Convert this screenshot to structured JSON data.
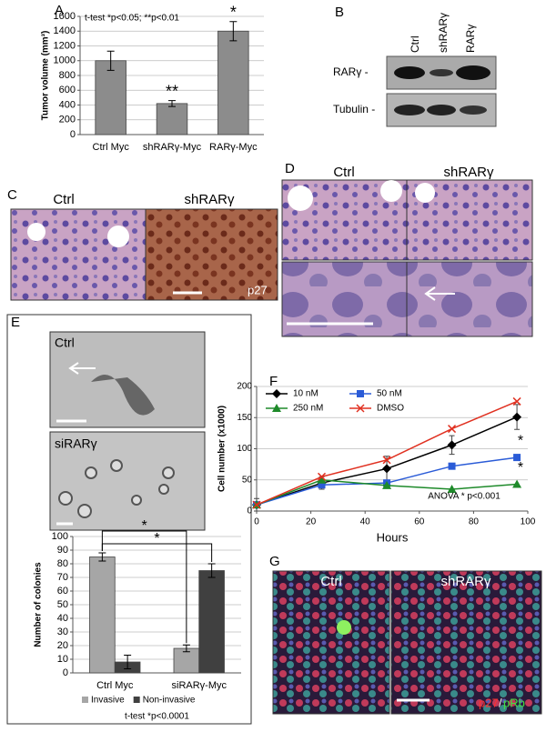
{
  "panel_labels": [
    "A",
    "B",
    "C",
    "D",
    "E",
    "F",
    "G"
  ],
  "blot": {
    "lanes": [
      "Ctrl",
      "shRARγ",
      "RARγ"
    ],
    "rows": [
      "RARγ -",
      "Tubulin -"
    ]
  },
  "panel_C": {
    "labels": [
      "Ctrl",
      "shRARγ"
    ],
    "stain": "p27"
  },
  "panel_D": {
    "labels": [
      "Ctrl",
      "shRARγ"
    ]
  },
  "panel_E": {
    "labels": [
      "Ctrl",
      "siRARγ"
    ]
  },
  "panel_G": {
    "labels": [
      "Ctrl",
      "shRARγ"
    ],
    "stains": [
      "p27",
      "/",
      "pRb"
    ]
  },
  "chart_data": [
    {
      "type": "bar",
      "y_label": "Tumor volume (mm³)",
      "annotation": "t-test *p<0.05; **p<0.01",
      "categories": [
        "Ctrl Myc",
        "shRARγ-Myc",
        "RARγ-Myc"
      ],
      "series": [
        {
          "name": null,
          "color": "#8c8c8c",
          "values": [
            1000,
            420,
            1400
          ],
          "errors": [
            130,
            40,
            130
          ]
        }
      ],
      "significance": [
        null,
        "**",
        "*"
      ],
      "ylim": [
        0,
        1600
      ],
      "yticks": [
        0,
        200,
        400,
        600,
        800,
        1000,
        1200,
        1400,
        1600
      ],
      "grid": true
    },
    {
      "type": "bar",
      "y_label": "Number of colonies",
      "annotation": "t-test *p<0.0001",
      "categories": [
        "Ctrl Myc",
        "siRARγ-Myc"
      ],
      "series": [
        {
          "name": "Invasive",
          "color": "#a6a6a6",
          "values": [
            85,
            18
          ],
          "errors": [
            3,
            2.5
          ]
        },
        {
          "name": "Non-invasive",
          "color": "#404040",
          "values": [
            8,
            75
          ],
          "errors": [
            5,
            5
          ]
        }
      ],
      "brackets": [
        "*",
        "*"
      ],
      "ylim": [
        0,
        100
      ],
      "yticks": [
        0,
        10,
        20,
        30,
        40,
        50,
        60,
        70,
        80,
        90,
        100
      ],
      "grid": true,
      "legend": "bottom"
    },
    {
      "type": "line",
      "x_label": "Hours",
      "y_label": "Cell number (x1000)",
      "annotations": [
        "ANOVA * p<0.001",
        "*",
        "*"
      ],
      "x": [
        0,
        24,
        48,
        72,
        96
      ],
      "series": [
        {
          "name": "10 nM",
          "color": "#000000",
          "marker": "diamond",
          "values": [
            10,
            45,
            68,
            106,
            151
          ],
          "errors": [
            10,
            10,
            20,
            15,
            20
          ]
        },
        {
          "name": "50 nM",
          "color": "#2a5bd7",
          "marker": "square",
          "values": [
            10,
            42,
            45,
            72,
            86
          ]
        },
        {
          "name": "250 nM",
          "color": "#1e8a2a",
          "marker": "triangle",
          "values": [
            10,
            50,
            41,
            35,
            43
          ]
        },
        {
          "name": "DMSO",
          "color": "#e03020",
          "marker": "x",
          "values": [
            10,
            55,
            82,
            132,
            176
          ]
        }
      ],
      "xlim": [
        0,
        100
      ],
      "xticks": [
        0,
        20,
        40,
        60,
        80,
        100
      ],
      "ylim": [
        0,
        200
      ],
      "yticks": [
        0,
        50,
        100,
        150,
        200
      ],
      "grid": true,
      "legend": "top-left"
    }
  ]
}
